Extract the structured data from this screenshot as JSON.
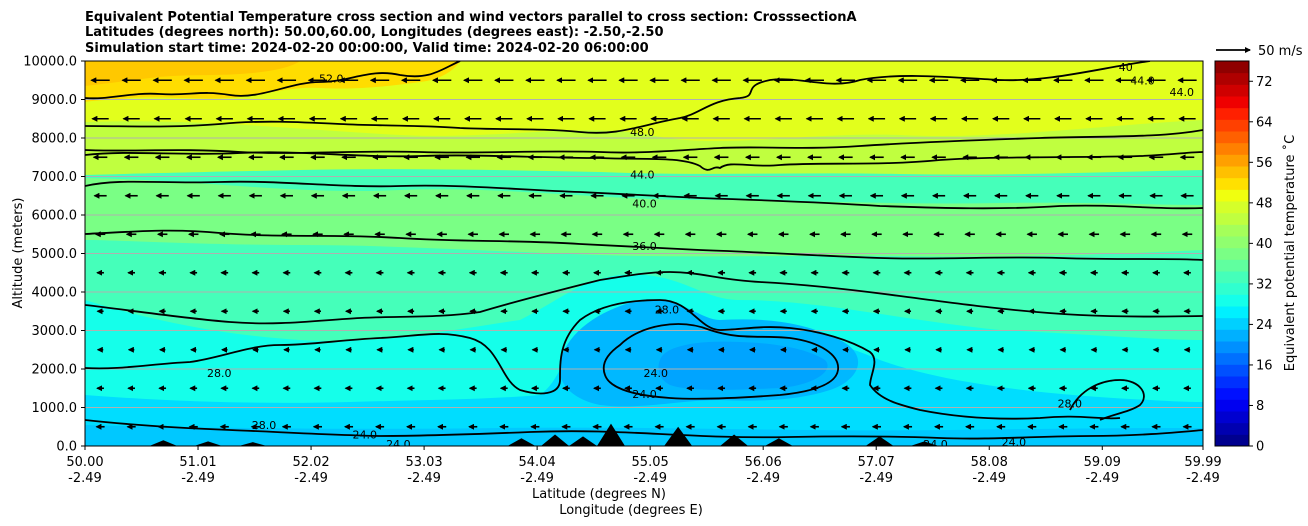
{
  "chart_data": {
    "type": "heatmap",
    "title_lines": [
      "Equivalent Potential Temperature cross section and wind vectors parallel to cross section: CrosssectionA",
      "Latitudes (degrees north): 50.00,60.00, Longitudes (degrees east): -2.50,-2.50",
      "Simulation start time: 2024-02-20 00:00:00, Valid time: 2024-02-20 06:00:00"
    ],
    "xlabel_lines": [
      "Latitude (degrees N)",
      "Longitude (degrees E)"
    ],
    "ylabel": "Altitude (meters)",
    "x_ticks": [
      {
        "value": 50.0,
        "lat": "50.00",
        "lon": "-2.49"
      },
      {
        "value": 51.01,
        "lat": "51.01",
        "lon": "-2.49"
      },
      {
        "value": 52.02,
        "lat": "52.02",
        "lon": "-2.49"
      },
      {
        "value": 53.03,
        "lat": "53.03",
        "lon": "-2.49"
      },
      {
        "value": 54.04,
        "lat": "54.04",
        "lon": "-2.49"
      },
      {
        "value": 55.05,
        "lat": "55.05",
        "lon": "-2.49"
      },
      {
        "value": 56.06,
        "lat": "56.06",
        "lon": "-2.49"
      },
      {
        "value": 57.07,
        "lat": "57.07",
        "lon": "-2.49"
      },
      {
        "value": 58.08,
        "lat": "58.08",
        "lon": "-2.49"
      },
      {
        "value": 59.09,
        "lat": "59.09",
        "lon": "-2.49"
      },
      {
        "value": 59.99,
        "lat": "59.99",
        "lon": "-2.49"
      }
    ],
    "xlim": [
      50.0,
      59.99
    ],
    "y_ticks": [
      {
        "value": 0,
        "label": "0.0"
      },
      {
        "value": 1000,
        "label": "1000.0"
      },
      {
        "value": 2000,
        "label": "2000.0"
      },
      {
        "value": 3000,
        "label": "3000.0"
      },
      {
        "value": 4000,
        "label": "4000.0"
      },
      {
        "value": 5000,
        "label": "5000.0"
      },
      {
        "value": 6000,
        "label": "6000.0"
      },
      {
        "value": 7000,
        "label": "7000.0"
      },
      {
        "value": 8000,
        "label": "8000.0"
      },
      {
        "value": 9000,
        "label": "9000.0"
      },
      {
        "value": 10000,
        "label": "10000.0"
      }
    ],
    "ylim": [
      0,
      10000
    ],
    "grid": "horizontal",
    "colorbar": {
      "label": "Equivalent potential temperature ˚C",
      "range": [
        0,
        76
      ],
      "ticks": [
        {
          "value": 0,
          "label": "0"
        },
        {
          "value": 8,
          "label": "8"
        },
        {
          "value": 16,
          "label": "16"
        },
        {
          "value": 24,
          "label": "24"
        },
        {
          "value": 32,
          "label": "32"
        },
        {
          "value": 40,
          "label": "40"
        },
        {
          "value": 48,
          "label": "48"
        },
        {
          "value": 56,
          "label": "56"
        },
        {
          "value": 64,
          "label": "64"
        },
        {
          "value": 72,
          "label": "72"
        }
      ],
      "colors": [
        "#00008f",
        "#0000b0",
        "#0000d0",
        "#0000f0",
        "#0010ff",
        "#0030ff",
        "#0050ff",
        "#0070ff",
        "#0090ff",
        "#00b0ff",
        "#00d0ff",
        "#00f0ff",
        "#15ffea",
        "#30ffcf",
        "#45ffba",
        "#60ff9f",
        "#7aff85",
        "#90ff6f",
        "#a5ff5a",
        "#c0ff3f",
        "#d5ff2a",
        "#f0ff0f",
        "#ffe000",
        "#ffc000",
        "#ffa000",
        "#ff8000",
        "#ff6000",
        "#ff4000",
        "#ff2000",
        "#ef0000",
        "#cf0000",
        "#af0000",
        "#8f0000"
      ]
    },
    "quiver_key": {
      "label": "50 m/s",
      "speed": 50
    },
    "wind_vectors": {
      "direction": "toward decreasing latitude (southward, leftward)",
      "rows": [
        {
          "altitude": 9500,
          "speed": 27
        },
        {
          "altitude": 8500,
          "speed": 24
        },
        {
          "altitude": 7500,
          "speed": 20
        },
        {
          "altitude": 6500,
          "speed": 18
        },
        {
          "altitude": 5500,
          "speed": 14
        },
        {
          "altitude": 4500,
          "speed": 10
        },
        {
          "altitude": 3500,
          "speed": 9
        },
        {
          "altitude": 2500,
          "speed": 8
        },
        {
          "altitude": 1500,
          "speed": 10
        },
        {
          "altitude": 500,
          "speed": 12
        }
      ],
      "columns": 36
    },
    "contour_labels": [
      {
        "text": "52.0",
        "lat": 52.2,
        "alt": 9550
      },
      {
        "text": "48.0",
        "lat": 54.98,
        "alt": 8150
      },
      {
        "text": "44.0",
        "lat": 54.98,
        "alt": 7050
      },
      {
        "text": "40.0",
        "lat": 55.0,
        "alt": 6300
      },
      {
        "text": "36.0",
        "lat": 55.0,
        "alt": 5200
      },
      {
        "text": "28.0",
        "lat": 55.2,
        "alt": 3550
      },
      {
        "text": "28.0",
        "lat": 51.2,
        "alt": 1900
      },
      {
        "text": "28.0",
        "lat": 51.6,
        "alt": 550
      },
      {
        "text": "24.0",
        "lat": 55.1,
        "alt": 1900
      },
      {
        "text": "24.0",
        "lat": 55.0,
        "alt": 1350
      },
      {
        "text": "24.0",
        "lat": 52.5,
        "alt": 300
      },
      {
        "text": "24.0",
        "lat": 52.8,
        "alt": 50
      },
      {
        "text": "24.0",
        "lat": 58.3,
        "alt": 100
      },
      {
        "text": "24.0",
        "lat": 57.6,
        "alt": 50
      },
      {
        "text": "28.0",
        "lat": 58.8,
        "alt": 1100
      },
      {
        "text": "44.0",
        "lat": 59.45,
        "alt": 9500
      },
      {
        "text": "40",
        "lat": 59.3,
        "alt": 9850
      },
      {
        "text": "44.0",
        "lat": 59.8,
        "alt": 9200
      }
    ],
    "terrain_peaks": [
      {
        "lat": 50.7,
        "alt": 150
      },
      {
        "lat": 51.1,
        "alt": 120
      },
      {
        "lat": 51.5,
        "alt": 100
      },
      {
        "lat": 53.9,
        "alt": 200
      },
      {
        "lat": 54.2,
        "alt": 300
      },
      {
        "lat": 54.45,
        "alt": 250
      },
      {
        "lat": 54.7,
        "alt": 580
      },
      {
        "lat": 55.3,
        "alt": 500
      },
      {
        "lat": 55.8,
        "alt": 300
      },
      {
        "lat": 56.2,
        "alt": 200
      },
      {
        "lat": 57.1,
        "alt": 250
      },
      {
        "lat": 57.5,
        "alt": 120
      }
    ]
  }
}
